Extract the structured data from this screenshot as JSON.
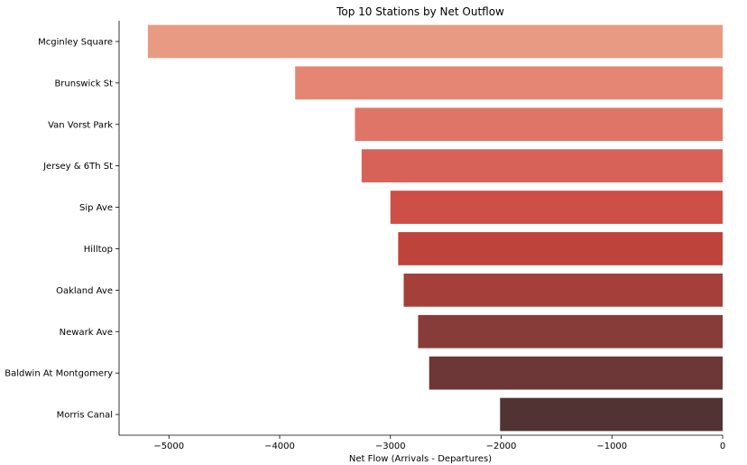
{
  "chart_data": {
    "type": "bar",
    "orientation": "horizontal",
    "title": "Top 10 Stations by Net Outflow",
    "xlabel": "Net Flow (Arrivals - Departures)",
    "ylabel": "",
    "xlim": [
      -5450,
      0
    ],
    "xticks": [
      -5000,
      -4000,
      -3000,
      -2000,
      -1000,
      0
    ],
    "xtick_labels": [
      "−5000",
      "−4000",
      "−3000",
      "−2000",
      "−1000",
      "0"
    ],
    "grid": false,
    "categories": [
      "Mcginley Square",
      "Brunswick St",
      "Van Vorst Park",
      "Jersey & 6Th St",
      "Sip Ave",
      "Hilltop",
      "Oakland Ave",
      "Newark Ave",
      "Baldwin At Montgomery",
      "Morris Canal"
    ],
    "values": [
      -5190,
      -3860,
      -3320,
      -3260,
      -3000,
      -2930,
      -2880,
      -2750,
      -2650,
      -2010
    ],
    "colors": [
      "#e99a83",
      "#e48673",
      "#df7566",
      "#d76358",
      "#cd4f45",
      "#be433a",
      "#a53f3a",
      "#873c39",
      "#6c3736",
      "#523333"
    ]
  }
}
